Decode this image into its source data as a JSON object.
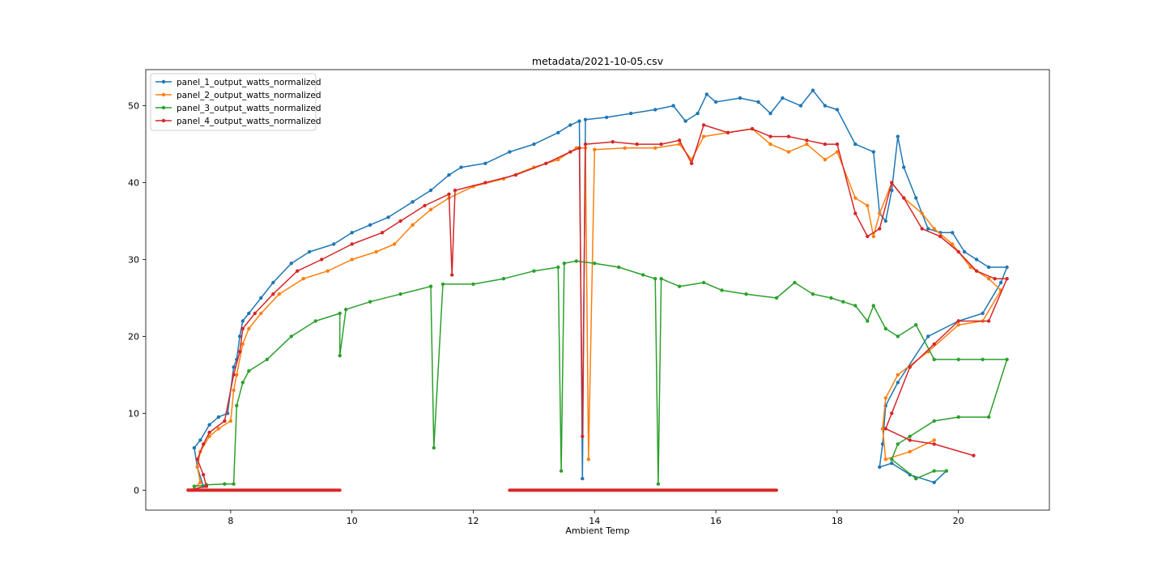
{
  "chart_data": {
    "type": "line",
    "title": "metadata/2021-10-05.csv",
    "xlabel": "Ambient Temp",
    "ylabel": "",
    "xlim": [
      6.6,
      21.5
    ],
    "ylim": [
      -2.6,
      54.7
    ],
    "xticks": [
      8,
      10,
      12,
      14,
      16,
      18,
      20
    ],
    "yticks": [
      0,
      10,
      20,
      30,
      40,
      50
    ],
    "grid": false,
    "legend_position": "top-left",
    "marker": "circle",
    "series": [
      {
        "name": "panel_1_output_watts_normalized",
        "color": "#1f77b4",
        "points": [
          [
            7.35,
            0
          ],
          [
            7.55,
            0.5
          ],
          [
            7.45,
            3
          ],
          [
            7.4,
            5.5
          ],
          [
            7.5,
            6.5
          ],
          [
            7.65,
            8.5
          ],
          [
            7.8,
            9.5
          ],
          [
            7.95,
            10
          ],
          [
            8.05,
            16
          ],
          [
            8.1,
            17
          ],
          [
            8.15,
            20
          ],
          [
            8.2,
            22
          ],
          [
            8.3,
            23
          ],
          [
            8.5,
            25
          ],
          [
            8.7,
            27
          ],
          [
            9.0,
            29.5
          ],
          [
            9.3,
            31
          ],
          [
            9.7,
            32
          ],
          [
            10.0,
            33.5
          ],
          [
            10.3,
            34.5
          ],
          [
            10.6,
            35.5
          ],
          [
            11.0,
            37.5
          ],
          [
            11.3,
            39
          ],
          [
            11.6,
            41
          ],
          [
            11.8,
            42
          ],
          [
            12.2,
            42.5
          ],
          [
            12.6,
            44
          ],
          [
            13.0,
            45
          ],
          [
            13.4,
            46.5
          ],
          [
            13.6,
            47.5
          ],
          [
            13.75,
            48
          ],
          [
            13.8,
            1.5
          ],
          [
            13.85,
            48.2
          ],
          [
            14.2,
            48.5
          ],
          [
            14.6,
            49
          ],
          [
            15.0,
            49.5
          ],
          [
            15.3,
            50
          ],
          [
            15.5,
            48
          ],
          [
            15.7,
            49
          ],
          [
            15.85,
            51.5
          ],
          [
            16.0,
            50.5
          ],
          [
            16.4,
            51
          ],
          [
            16.7,
            50.5
          ],
          [
            16.9,
            49
          ],
          [
            17.1,
            51
          ],
          [
            17.4,
            50
          ],
          [
            17.6,
            52
          ],
          [
            17.8,
            50
          ],
          [
            18.0,
            49.5
          ],
          [
            18.3,
            45
          ],
          [
            18.6,
            44
          ],
          [
            18.7,
            36
          ],
          [
            18.8,
            35
          ],
          [
            18.9,
            39
          ],
          [
            19.0,
            46
          ],
          [
            19.1,
            42
          ],
          [
            19.3,
            38
          ],
          [
            19.5,
            34
          ],
          [
            19.7,
            33.5
          ],
          [
            19.9,
            33.5
          ],
          [
            20.1,
            31
          ],
          [
            20.3,
            30
          ],
          [
            20.5,
            29
          ],
          [
            20.8,
            29
          ],
          [
            20.7,
            27
          ],
          [
            20.4,
            23
          ],
          [
            20.0,
            22
          ],
          [
            19.5,
            20
          ],
          [
            19.0,
            14
          ],
          [
            18.8,
            11
          ],
          [
            18.75,
            6
          ],
          [
            18.7,
            3
          ],
          [
            18.9,
            3.5
          ],
          [
            19.2,
            2
          ],
          [
            19.6,
            1
          ],
          [
            19.8,
            2.5
          ]
        ]
      },
      {
        "name": "panel_2_output_watts_normalized",
        "color": "#ff7f0e",
        "points": [
          [
            7.35,
            0
          ],
          [
            7.5,
            1
          ],
          [
            7.45,
            3
          ],
          [
            7.5,
            5
          ],
          [
            7.65,
            7
          ],
          [
            7.8,
            8
          ],
          [
            8.0,
            9
          ],
          [
            8.05,
            13
          ],
          [
            8.1,
            15
          ],
          [
            8.2,
            19
          ],
          [
            8.3,
            21
          ],
          [
            8.5,
            23
          ],
          [
            8.8,
            25.5
          ],
          [
            9.2,
            27.5
          ],
          [
            9.6,
            28.5
          ],
          [
            10.0,
            30
          ],
          [
            10.4,
            31
          ],
          [
            10.7,
            32
          ],
          [
            11.0,
            34.5
          ],
          [
            11.3,
            36.5
          ],
          [
            11.6,
            38
          ],
          [
            12.0,
            39.5
          ],
          [
            12.5,
            40.5
          ],
          [
            13.0,
            42
          ],
          [
            13.4,
            43
          ],
          [
            13.7,
            44.5
          ],
          [
            13.85,
            44.5
          ],
          [
            13.9,
            4
          ],
          [
            14.0,
            44.3
          ],
          [
            14.5,
            44.5
          ],
          [
            15.0,
            44.5
          ],
          [
            15.4,
            45
          ],
          [
            15.6,
            43
          ],
          [
            15.8,
            46
          ],
          [
            16.2,
            46.5
          ],
          [
            16.6,
            47
          ],
          [
            16.9,
            45
          ],
          [
            17.2,
            44
          ],
          [
            17.5,
            45
          ],
          [
            17.8,
            43
          ],
          [
            18.0,
            44
          ],
          [
            18.3,
            38
          ],
          [
            18.5,
            37
          ],
          [
            18.6,
            33
          ],
          [
            18.7,
            36
          ],
          [
            18.9,
            40
          ],
          [
            19.1,
            38
          ],
          [
            19.4,
            36
          ],
          [
            19.6,
            34
          ],
          [
            19.9,
            32
          ],
          [
            20.2,
            29
          ],
          [
            20.5,
            27.5
          ],
          [
            20.7,
            26
          ],
          [
            20.4,
            22
          ],
          [
            20.0,
            21.5
          ],
          [
            19.5,
            18
          ],
          [
            19.0,
            15
          ],
          [
            18.8,
            12
          ],
          [
            18.75,
            8
          ],
          [
            18.8,
            4
          ],
          [
            19.2,
            5
          ],
          [
            19.6,
            6.5
          ]
        ]
      },
      {
        "name": "panel_3_output_watts_normalized",
        "color": "#2ca02c",
        "points": [
          [
            7.4,
            0.5
          ],
          [
            7.6,
            0.7
          ],
          [
            7.9,
            0.8
          ],
          [
            8.05,
            0.8
          ],
          [
            8.1,
            11
          ],
          [
            8.2,
            14
          ],
          [
            8.3,
            15.5
          ],
          [
            8.6,
            17
          ],
          [
            9.0,
            20
          ],
          [
            9.4,
            22
          ],
          [
            9.8,
            23
          ],
          [
            9.8,
            17.5
          ],
          [
            9.9,
            23.5
          ],
          [
            10.3,
            24.5
          ],
          [
            10.8,
            25.5
          ],
          [
            11.3,
            26.5
          ],
          [
            11.35,
            5.5
          ],
          [
            11.5,
            26.8
          ],
          [
            12.0,
            26.8
          ],
          [
            12.5,
            27.5
          ],
          [
            13.0,
            28.5
          ],
          [
            13.4,
            29
          ],
          [
            13.45,
            2.5
          ],
          [
            13.5,
            29.5
          ],
          [
            13.7,
            29.8
          ],
          [
            14.0,
            29.5
          ],
          [
            14.4,
            29
          ],
          [
            14.8,
            28
          ],
          [
            15.0,
            27.5
          ],
          [
            15.05,
            0.8
          ],
          [
            15.1,
            27.5
          ],
          [
            15.4,
            26.5
          ],
          [
            15.8,
            27
          ],
          [
            16.1,
            26
          ],
          [
            16.5,
            25.5
          ],
          [
            17.0,
            25
          ],
          [
            17.3,
            27
          ],
          [
            17.6,
            25.5
          ],
          [
            17.9,
            25
          ],
          [
            18.1,
            24.5
          ],
          [
            18.3,
            24
          ],
          [
            18.5,
            22
          ],
          [
            18.6,
            24
          ],
          [
            18.8,
            21
          ],
          [
            19.0,
            20
          ],
          [
            19.3,
            21.5
          ],
          [
            19.6,
            17
          ],
          [
            20.0,
            17
          ],
          [
            20.4,
            17
          ],
          [
            20.8,
            17
          ],
          [
            20.5,
            9.5
          ],
          [
            20.0,
            9.5
          ],
          [
            19.6,
            9
          ],
          [
            19.2,
            7
          ],
          [
            19.0,
            6
          ],
          [
            18.9,
            4
          ],
          [
            19.3,
            1.5
          ],
          [
            19.6,
            2.5
          ],
          [
            19.8,
            2.5
          ]
        ]
      },
      {
        "name": "panel_4_output_watts_normalized",
        "color": "#d62728",
        "points": [
          [
            7.3,
            0
          ],
          [
            7.6,
            0.5
          ],
          [
            7.55,
            2
          ],
          [
            7.45,
            4
          ],
          [
            7.55,
            6
          ],
          [
            7.65,
            7.5
          ],
          [
            7.9,
            9
          ],
          [
            8.05,
            15
          ],
          [
            8.15,
            18
          ],
          [
            8.2,
            21
          ],
          [
            8.4,
            23
          ],
          [
            8.7,
            25.5
          ],
          [
            9.1,
            28.5
          ],
          [
            9.5,
            30
          ],
          [
            10.0,
            32
          ],
          [
            10.5,
            33.5
          ],
          [
            10.8,
            35
          ],
          [
            11.2,
            37
          ],
          [
            11.6,
            38.5
          ],
          [
            11.65,
            28
          ],
          [
            11.7,
            39
          ],
          [
            12.2,
            40
          ],
          [
            12.7,
            41
          ],
          [
            13.2,
            42.5
          ],
          [
            13.6,
            44
          ],
          [
            13.75,
            44.5
          ],
          [
            13.8,
            7
          ],
          [
            13.85,
            45
          ],
          [
            14.3,
            45.3
          ],
          [
            14.7,
            45
          ],
          [
            15.1,
            45
          ],
          [
            15.4,
            45.5
          ],
          [
            15.6,
            42.5
          ],
          [
            15.8,
            47.5
          ],
          [
            16.2,
            46.5
          ],
          [
            16.6,
            47
          ],
          [
            16.9,
            46
          ],
          [
            17.2,
            46
          ],
          [
            17.5,
            45.5
          ],
          [
            17.8,
            45
          ],
          [
            18.0,
            45
          ],
          [
            18.3,
            36
          ],
          [
            18.5,
            33
          ],
          [
            18.7,
            34
          ],
          [
            18.9,
            40
          ],
          [
            19.1,
            38
          ],
          [
            19.4,
            34
          ],
          [
            19.7,
            33
          ],
          [
            20.0,
            31
          ],
          [
            20.3,
            28.5
          ],
          [
            20.6,
            27.5
          ],
          [
            20.8,
            27.5
          ],
          [
            20.5,
            22
          ],
          [
            20.0,
            22
          ],
          [
            19.6,
            19
          ],
          [
            19.2,
            16
          ],
          [
            18.9,
            10
          ],
          [
            18.8,
            8
          ],
          [
            19.2,
            6.5
          ],
          [
            19.6,
            6
          ],
          [
            20.25,
            4.5
          ]
        ]
      }
    ],
    "zero_run_x": [
      [
        7.3,
        9.8
      ],
      [
        12.6,
        17.0
      ]
    ]
  }
}
